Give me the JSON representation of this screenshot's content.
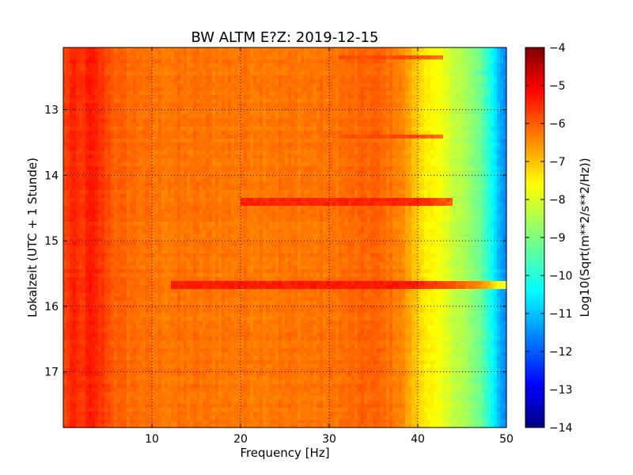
{
  "chart_data": {
    "type": "heatmap",
    "title": "BW ALTM E?Z: 2019-12-15",
    "xlabel": "Frequency [Hz]",
    "ylabel": "Lokalzeit (UTC + 1 Stunde)",
    "xlim": [
      0,
      50
    ],
    "ylim": [
      12.05,
      17.85
    ],
    "y_inverted": true,
    "x_ticks": [
      10,
      20,
      30,
      40,
      50
    ],
    "x_tick_labels": [
      "10",
      "20",
      "30",
      "40",
      "50"
    ],
    "y_ticks": [
      13,
      14,
      15,
      16,
      17
    ],
    "y_tick_labels": [
      "13",
      "14",
      "15",
      "16",
      "17"
    ],
    "grid": true,
    "colormap": "jet",
    "colorbar": {
      "label": "Log10(Sqrt(m**2/s**2/Hz))",
      "min": -14,
      "max": -4,
      "ticks": [
        -4,
        -5,
        -6,
        -7,
        -8,
        -9,
        -10,
        -11,
        -12,
        -13,
        -14
      ],
      "tick_labels": [
        "−4",
        "−5",
        "−6",
        "−7",
        "−8",
        "−9",
        "−10",
        "−11",
        "−12",
        "−13",
        "−14"
      ]
    },
    "spectral_profile": {
      "frequency_hz": [
        0,
        1,
        2,
        3,
        4,
        6,
        10,
        20,
        30,
        35,
        38,
        40,
        42,
        45,
        47,
        48,
        49,
        50
      ],
      "level": [
        -6.0,
        -5.6,
        -5.8,
        -5.5,
        -5.7,
        -6.2,
        -6.4,
        -6.4,
        -6.4,
        -6.2,
        -6.5,
        -7.3,
        -7.8,
        -8.5,
        -9.2,
        -9.8,
        -10.8,
        -11.5
      ]
    },
    "features": [
      {
        "time": 15.68,
        "freq_range": [
          12,
          50
        ],
        "level": -5.5
      },
      {
        "time": 14.4,
        "freq_range": [
          20,
          44
        ],
        "level": -5.6
      },
      {
        "time": 12.2,
        "freq_range": [
          31,
          43
        ],
        "level": -6.0
      },
      {
        "time": 13.4,
        "freq_range": [
          31,
          43
        ],
        "level": -6.0
      }
    ]
  }
}
